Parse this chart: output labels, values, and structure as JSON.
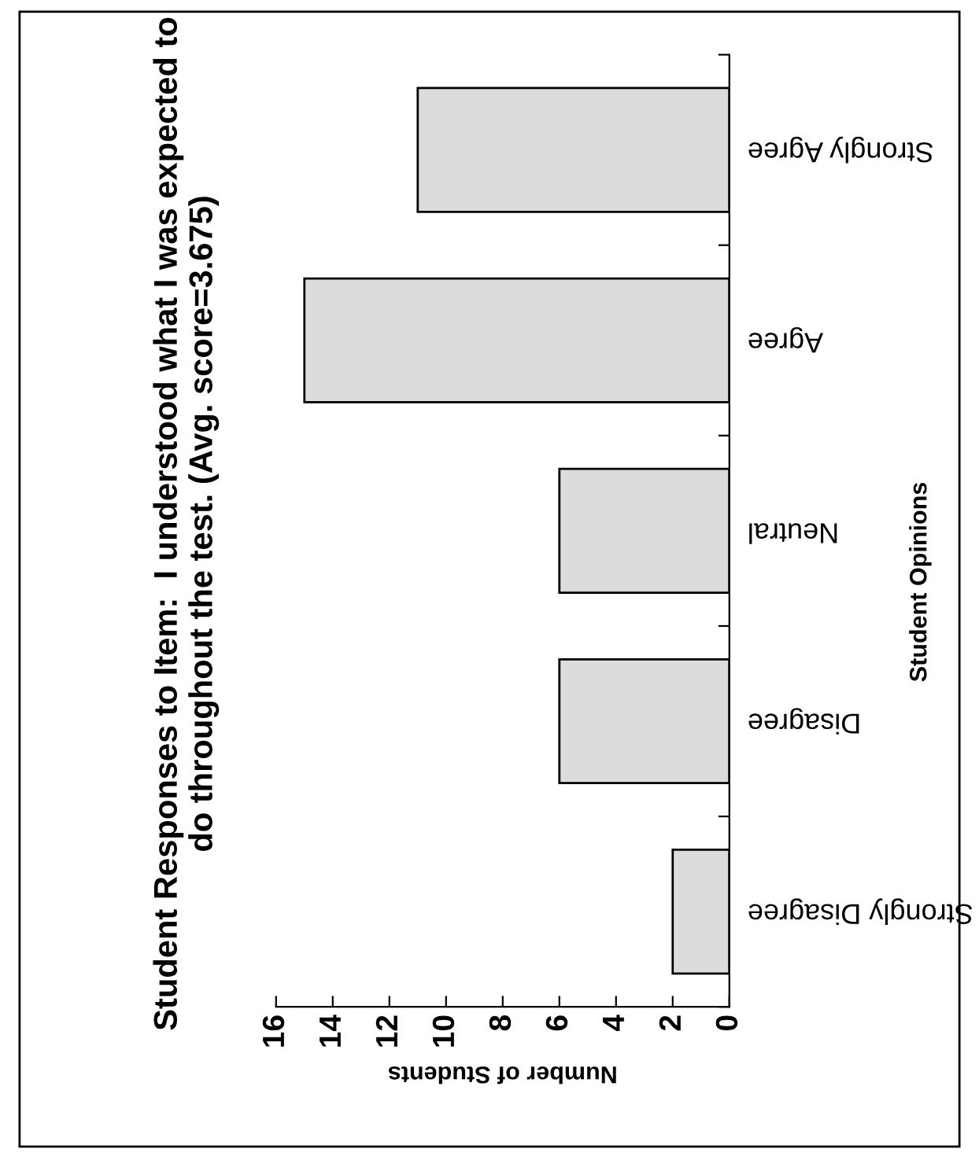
{
  "chart_data": {
    "type": "bar",
    "orientation": "horizontal",
    "title": "Student Responses to Item:  I understood what I was expected to do throughout the test. (Avg. score=3.675)",
    "xlabel": "Number of Students",
    "ylabel": "Student Opinions",
    "categories": [
      "Strongly Agree",
      "Agree",
      "Neutral",
      "Disagree",
      "Strongly Disagree"
    ],
    "values": [
      11,
      15,
      6,
      6,
      2
    ],
    "color": "#dcdcdc",
    "xlim": [
      16,
      0
    ],
    "xticks": [
      16,
      14,
      12,
      10,
      8,
      6,
      4,
      2,
      0
    ],
    "grid": false,
    "legend": false
  }
}
